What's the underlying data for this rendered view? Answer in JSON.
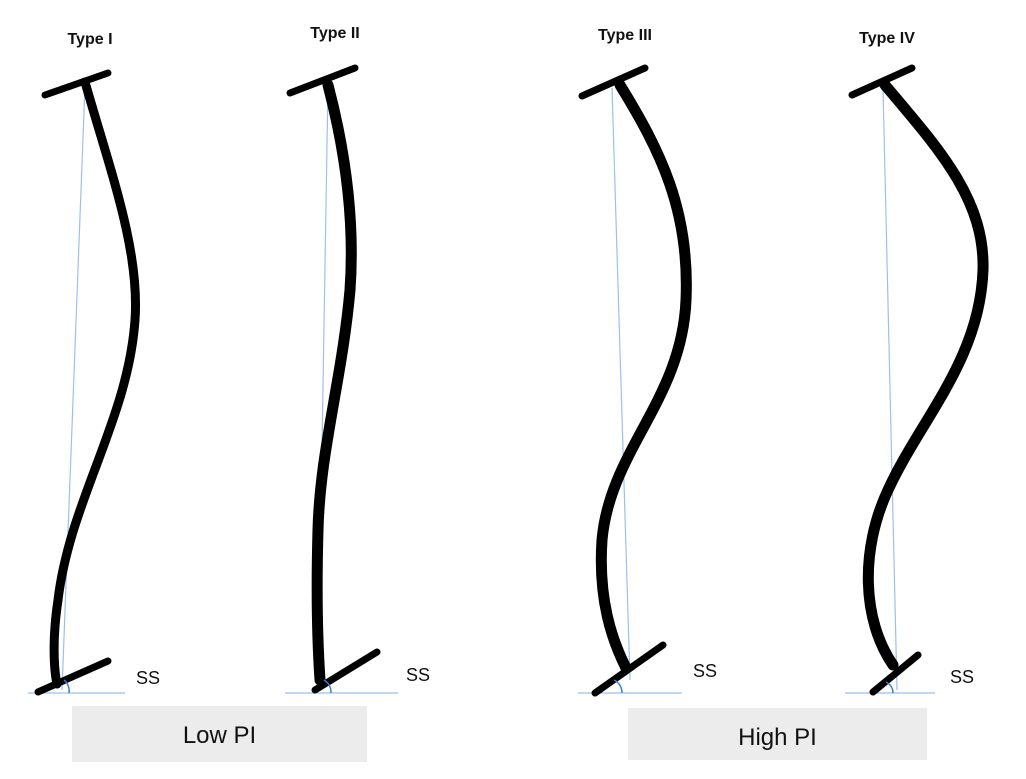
{
  "panels": [
    {
      "title": "Type I",
      "angle_label": "SS"
    },
    {
      "title": "Type II",
      "angle_label": "SS"
    },
    {
      "title": "Type III",
      "angle_label": "SS"
    },
    {
      "title": "Type IV",
      "angle_label": "SS"
    }
  ],
  "groups": [
    {
      "label": "Low PI"
    },
    {
      "label": "High PI"
    }
  ]
}
